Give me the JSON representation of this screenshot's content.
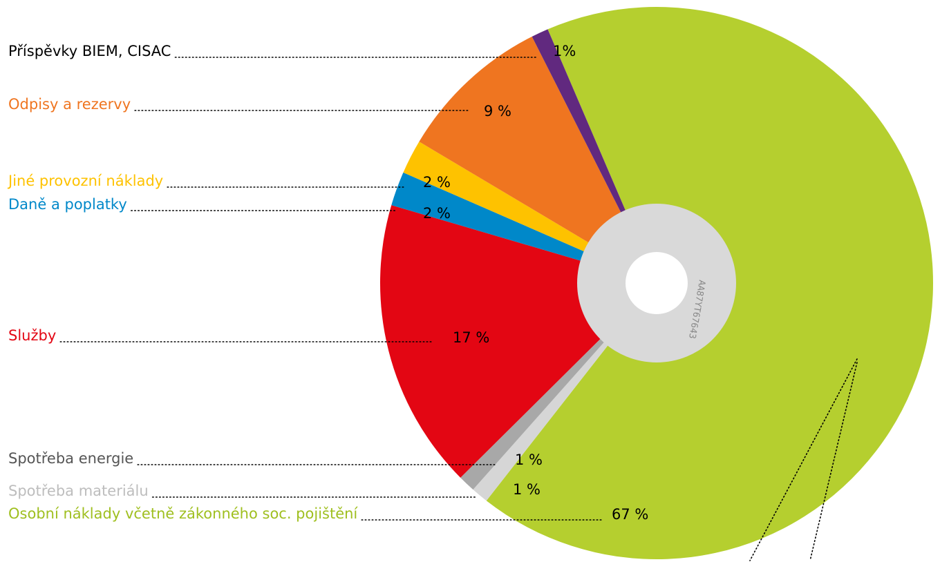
{
  "chart_data": {
    "type": "pie",
    "categories": [
      "Osobní náklady včetně zákonného soc. pojištění",
      "Spotřeba materiálu",
      "Spotřeba energie",
      "Služby",
      "Daně a poplatky",
      "Jiné provozní náklady",
      "Odpisy a rezervy",
      "Příspěvky BIEM, CISAC"
    ],
    "values": [
      67,
      1,
      1,
      17,
      2,
      2,
      9,
      1
    ],
    "value_labels": [
      "67 %",
      "1 %",
      "1 %",
      "17 %",
      "2 %",
      "2 %",
      "9 %",
      "1%"
    ],
    "colors": [
      "#b5cf2f",
      "#d6d6d6",
      "#a8a8a8",
      "#e30613",
      "#0088c9",
      "#fec200",
      "#ef7520",
      "#61297f"
    ],
    "label_colors": [
      "#9fbf1f",
      "#bdbdbd",
      "#555555",
      "#e30613",
      "#0088c9",
      "#fec200",
      "#ef7520",
      "#000000"
    ],
    "center_label": "AA87YT67643"
  }
}
